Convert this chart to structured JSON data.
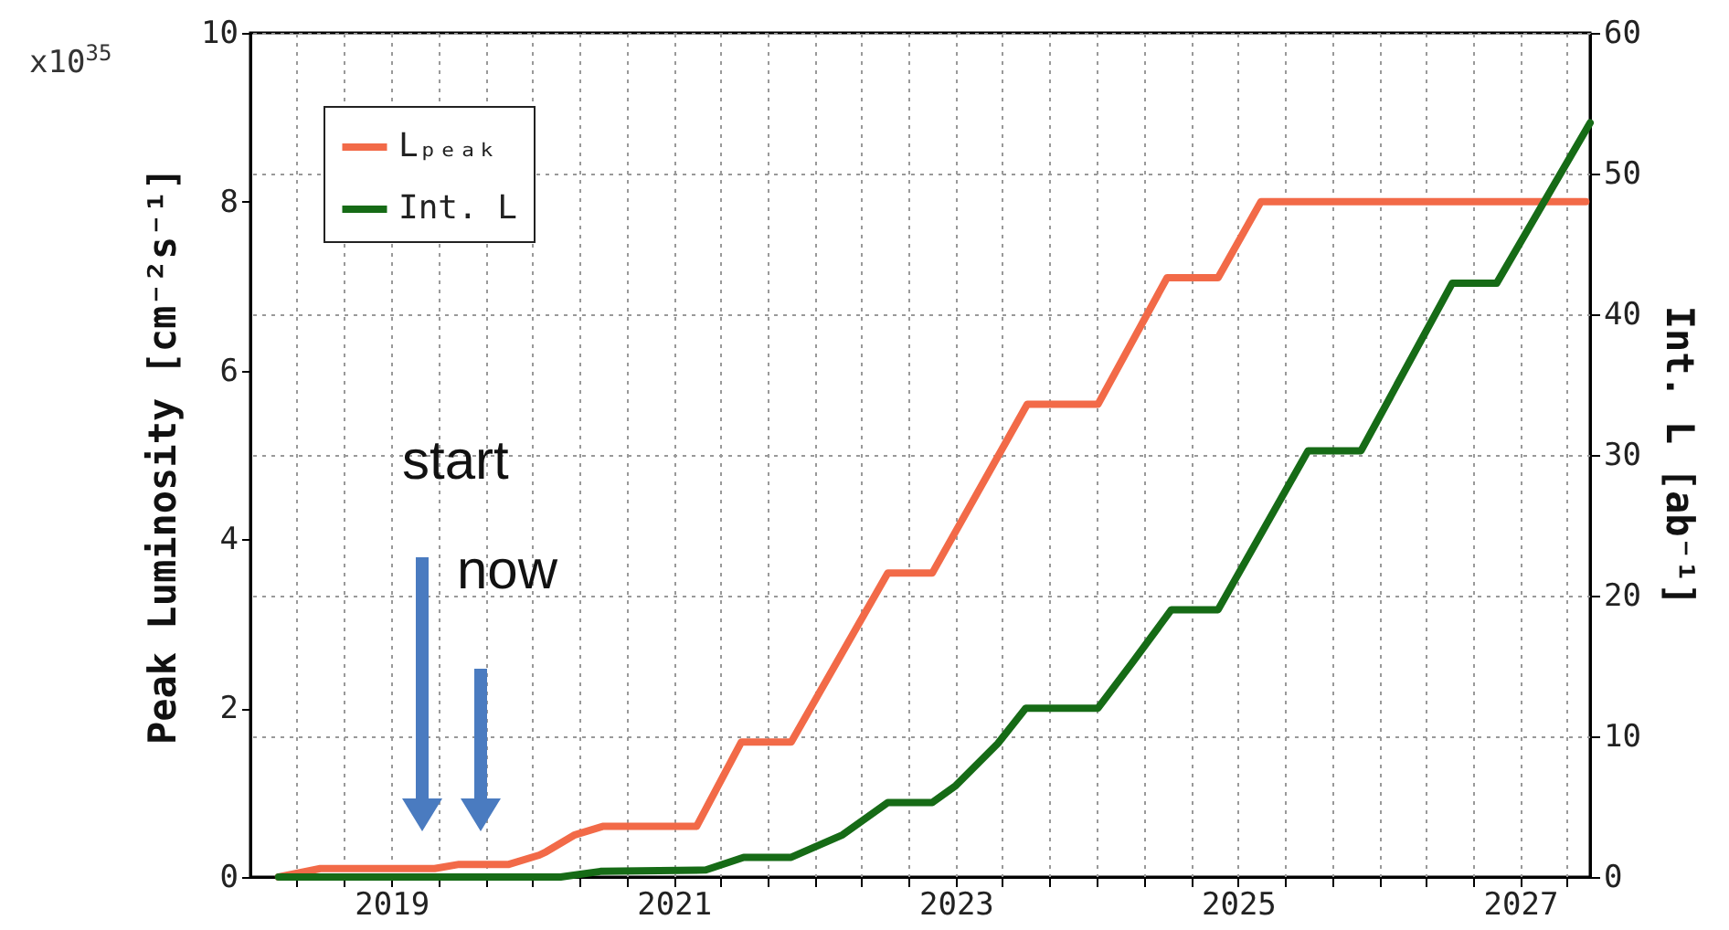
{
  "chart_data": {
    "type": "line",
    "ylabel": "Peak Luminosity [cm⁻²s⁻¹]",
    "y2label": "Int. L [ab⁻¹]",
    "xlim": [
      "2018-01-01",
      "2027-07-01"
    ],
    "xticks": [
      {
        "value": "2018-05-01",
        "label": null
      },
      {
        "value": "2018-09-01",
        "label": null
      },
      {
        "value": "2019-01-01",
        "label": "2019"
      },
      {
        "value": "2019-05-01",
        "label": null
      },
      {
        "value": "2019-09-01",
        "label": null
      },
      {
        "value": "2020-01-01",
        "label": null
      },
      {
        "value": "2020-05-01",
        "label": null
      },
      {
        "value": "2020-09-01",
        "label": null
      },
      {
        "value": "2021-01-01",
        "label": "2021"
      },
      {
        "value": "2021-05-01",
        "label": null
      },
      {
        "value": "2021-09-01",
        "label": null
      },
      {
        "value": "2022-01-01",
        "label": null
      },
      {
        "value": "2022-05-01",
        "label": null
      },
      {
        "value": "2022-09-01",
        "label": null
      },
      {
        "value": "2023-01-01",
        "label": "2023"
      },
      {
        "value": "2023-05-01",
        "label": null
      },
      {
        "value": "2023-09-01",
        "label": null
      },
      {
        "value": "2024-01-01",
        "label": null
      },
      {
        "value": "2024-05-01",
        "label": null
      },
      {
        "value": "2024-09-01",
        "label": null
      },
      {
        "value": "2025-01-01",
        "label": "2025"
      },
      {
        "value": "2025-05-01",
        "label": null
      },
      {
        "value": "2025-09-01",
        "label": null
      },
      {
        "value": "2026-01-01",
        "label": null
      },
      {
        "value": "2026-05-01",
        "label": null
      },
      {
        "value": "2026-09-01",
        "label": null
      },
      {
        "value": "2027-01-01",
        "label": "2027"
      },
      {
        "value": "2027-05-01",
        "label": null
      }
    ],
    "ylim": [
      0,
      10
    ],
    "yticks": [
      0,
      2,
      4,
      6,
      8,
      10
    ],
    "y2lim": [
      0,
      60
    ],
    "y2ticks": [
      0,
      10,
      20,
      30,
      40,
      50,
      60
    ],
    "grid": true,
    "legend": "top left",
    "series": [
      {
        "name": "Lₚₑₐₖ",
        "color": "#f26a48",
        "x": [
          "2018-03-15",
          "2018-07-01",
          "2019-04-23",
          "2019-06-25",
          "2019-11-01",
          "2020-01-19",
          "2020-02-06",
          "2020-04-20",
          "2020-07-01",
          "2021-03-01",
          "2021-06-25",
          "2021-11-01",
          "2022-07-09",
          "2022-11-01",
          "2023-07-05",
          "2024-01-04",
          "2024-07-01",
          "2024-11-10",
          "2025-03-01",
          "2027-06-20"
        ],
        "values": [
          0,
          0.1,
          0.1,
          0.15,
          0.15,
          0.26,
          0.3,
          0.5,
          0.6,
          0.6,
          1.6,
          1.6,
          3.6,
          3.6,
          5.6,
          5.6,
          7.1,
          7.1,
          8.0,
          8.0
        ]
      },
      {
        "name": "Int. L",
        "color": "#166b16",
        "axis": "y2",
        "x": [
          "2018-03-15",
          "2020-03-14",
          "2020-06-25",
          "2021-03-25",
          "2021-07-01",
          "2021-11-01",
          "2022-03-14",
          "2022-07-09",
          "2022-11-01",
          "2023-01-01",
          "2023-04-20",
          "2023-07-01",
          "2024-01-04",
          "2024-04-01",
          "2024-07-12",
          "2024-11-10",
          "2025-07-01",
          "2025-11-15",
          "2026-07-09",
          "2026-11-01",
          "2027-07-01"
        ],
        "values": [
          0,
          0,
          0.4,
          0.5,
          1.4,
          1.4,
          3.0,
          5.3,
          5.3,
          6.5,
          9.5,
          12,
          12,
          15.2,
          19,
          19,
          30.3,
          30.3,
          42.2,
          42.2,
          53.6
        ]
      }
    ],
    "annotations": [
      "x10$^{35}$",
      "start",
      "now"
    ]
  }
}
